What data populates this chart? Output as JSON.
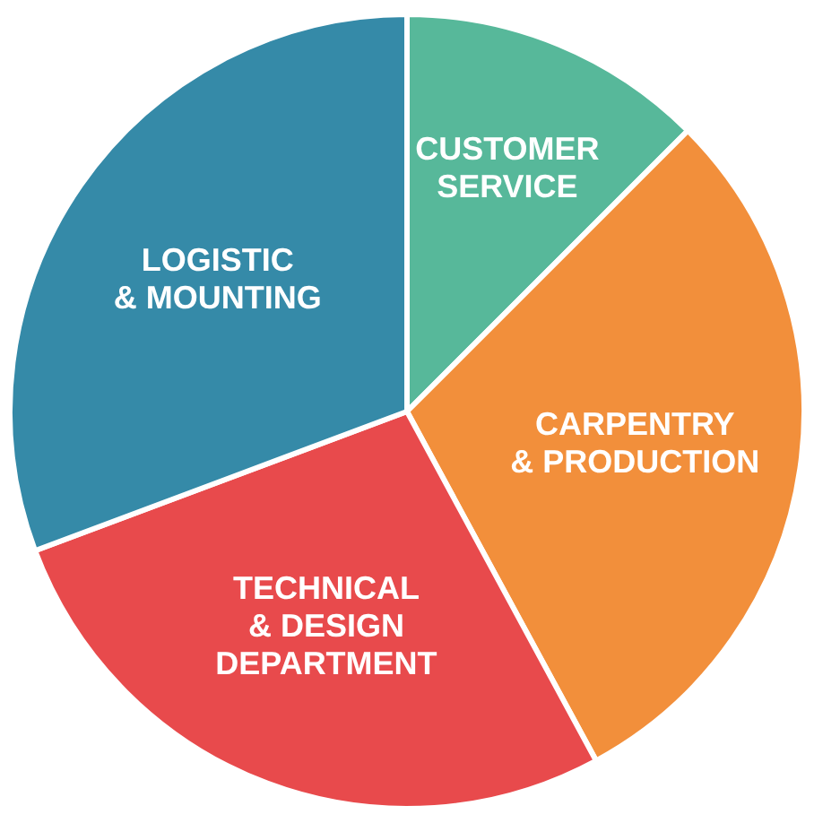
{
  "chart_data": {
    "type": "pie",
    "categories": [
      "CUSTOMER SERVICE",
      "CARPENTRY & PRODUCTION",
      "TECHNICAL & DESIGN DEPARTMENT",
      "LOGISTIC & MOUNTING"
    ],
    "values": [
      12.5,
      29.6,
      27.2,
      30.7
    ],
    "colors": [
      "#57b89a",
      "#f28f3b",
      "#e84a4c",
      "#358aa8"
    ],
    "legend": false
  }
}
